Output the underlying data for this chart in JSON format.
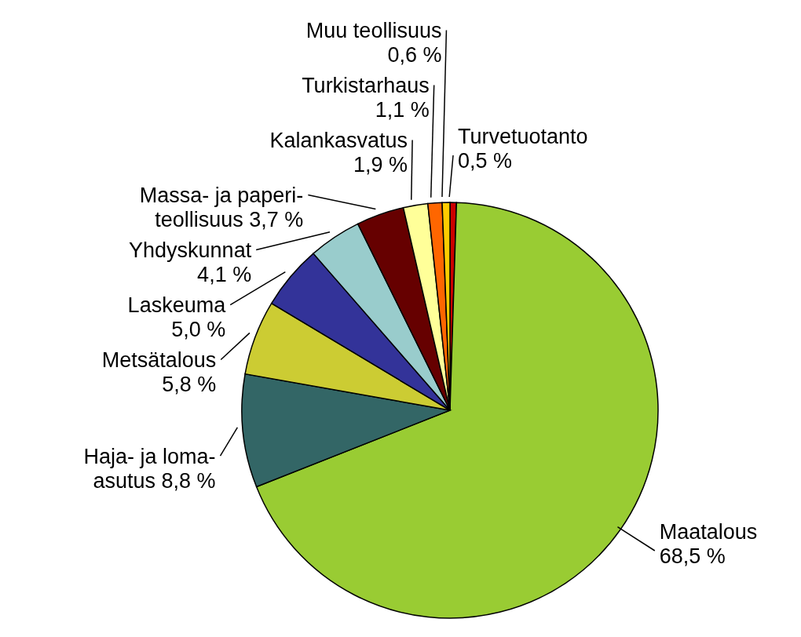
{
  "chart_data": {
    "type": "pie",
    "categories": [
      "Turvetuotanto",
      "Maatalous",
      "Haja- ja loma-asutus",
      "Metsätalous",
      "Laskeuma",
      "Yhdyskunnat",
      "Massa- ja paperi-teollisuus",
      "Kalankasvatus",
      "Turkistarhaus",
      "Muu teollisuus"
    ],
    "values": [
      0.5,
      68.5,
      8.8,
      5.8,
      5.0,
      4.1,
      3.7,
      1.9,
      1.1,
      0.6
    ],
    "value_labels": [
      "0,5 %",
      "68,5 %",
      "8,8 %",
      "5,8 %",
      "5,0 %",
      "4,1 %",
      "3,7 %",
      "1,9 %",
      "1,1 %",
      "0,6 %"
    ],
    "colors": [
      "#cc0000",
      "#99cc33",
      "#336666",
      "#cccc33",
      "#333399",
      "#99cccc",
      "#660000",
      "#ffff99",
      "#ff6600",
      "#ffcc00"
    ]
  }
}
